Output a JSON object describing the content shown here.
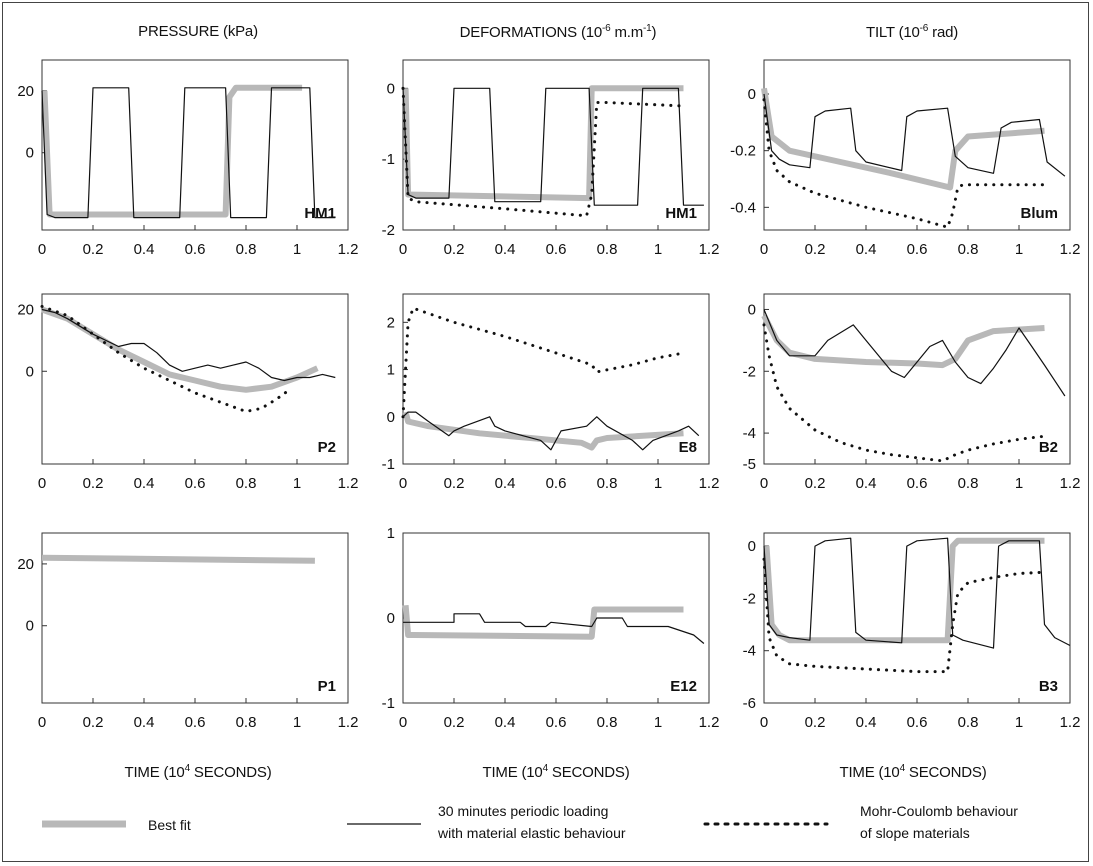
{
  "columns": [
    {
      "title": "PRESSURE (kPa)",
      "title_parts": [
        "PRESSURE (kPa)",
        "",
        ""
      ]
    },
    {
      "title": "DEFORMATIONS (10-6 m.m-1)",
      "title_parts": [
        "DEFORMATIONS (10",
        "-6",
        " m.m",
        "-1",
        ")"
      ]
    },
    {
      "title": "TILT (10-6 rad)",
      "title_parts": [
        "TILT (10",
        "-6",
        " rad)"
      ]
    }
  ],
  "xlabel": {
    "text": "TIME (104 SECONDS)",
    "pre": "TIME (10",
    "sup": "4",
    "post": " SECONDS)"
  },
  "legend": [
    {
      "label": "Best fit",
      "style": "best-fit"
    },
    {
      "label": "30 minutes periodic loading\nwith material elastic behaviour",
      "line1": "30 minutes periodic loading",
      "line2": "with material elastic behaviour",
      "style": "elastic"
    },
    {
      "label": "Mohr-Coulomb behaviour\nof slope materials",
      "line1": "Mohr-Coulomb behaviour",
      "line2": "of slope materials",
      "style": "mohr"
    }
  ],
  "colors": {
    "best_fit": "#b8b8b8",
    "elastic": "#111111",
    "mohr": "#111111",
    "frame": "#333333"
  },
  "chart_data": [
    {
      "id": "HM1-pressure",
      "type": "line",
      "label": "HM1",
      "xlim": [
        0,
        1.2
      ],
      "ylim": [
        -25,
        30
      ],
      "xticks": [
        0,
        0.2,
        0.4,
        0.6,
        0.8,
        1,
        1.2
      ],
      "xticklabels": [
        "0",
        "0.2",
        "0.4",
        "0.6",
        "0.8",
        "1",
        "1.2"
      ],
      "yticks": [
        20,
        0
      ],
      "yticklabels": [
        "20",
        "0"
      ],
      "series": [
        {
          "style": "elastic",
          "x": [
            0,
            0.02,
            0.05,
            0.18,
            0.2,
            0.34,
            0.36,
            0.54,
            0.56,
            0.72,
            0.74,
            0.88,
            0.9,
            1.05,
            1.07,
            1.15
          ],
          "y": [
            20,
            -20,
            -21,
            -21,
            21,
            21,
            -21,
            -21,
            21,
            21,
            -21,
            -21,
            21,
            21,
            -21,
            -21
          ]
        },
        {
          "style": "best-fit",
          "x": [
            0.01,
            0.03,
            0.72,
            0.735,
            0.76,
            1.02
          ],
          "y": [
            20,
            -20,
            -20,
            18,
            21,
            21
          ]
        }
      ]
    },
    {
      "id": "HM1-deformation",
      "type": "line",
      "label": "HM1",
      "xlim": [
        0,
        1.2
      ],
      "ylim": [
        -2,
        0.4
      ],
      "xticks": [
        0,
        0.2,
        0.4,
        0.6,
        0.8,
        1,
        1.2
      ],
      "xticklabels": [
        "0",
        "0.2",
        "0.4",
        "0.6",
        "0.8",
        "1",
        "1.2"
      ],
      "yticks": [
        0,
        -1,
        -2
      ],
      "yticklabels": [
        "0",
        "-1",
        "-2"
      ],
      "series": [
        {
          "style": "elastic",
          "x": [
            0,
            0.02,
            0.05,
            0.18,
            0.2,
            0.34,
            0.36,
            0.54,
            0.56,
            0.73,
            0.75,
            0.92,
            0.94,
            1.08,
            1.1,
            1.18
          ],
          "y": [
            0,
            -1.5,
            -1.55,
            -1.55,
            0,
            0,
            -1.6,
            -1.6,
            0,
            0,
            -1.65,
            -1.65,
            0,
            0,
            -1.65,
            -1.65
          ]
        },
        {
          "style": "best-fit",
          "x": [
            0.01,
            0.02,
            0.04,
            0.73,
            0.74,
            0.76,
            1.1
          ],
          "y": [
            0,
            -1.5,
            -1.5,
            -1.55,
            0,
            0,
            0
          ]
        },
        {
          "style": "mohr",
          "x": [
            0,
            0.02,
            0.05,
            0.4,
            0.72,
            0.74,
            0.76,
            0.8,
            1.1
          ],
          "y": [
            0,
            -1.55,
            -1.6,
            -1.7,
            -1.8,
            -1.5,
            -0.2,
            -0.2,
            -0.25
          ]
        }
      ]
    },
    {
      "id": "Blum-tilt",
      "type": "line",
      "label": "Blum",
      "xlim": [
        0,
        1.2
      ],
      "ylim": [
        -0.48,
        0.12
      ],
      "xticks": [
        0,
        0.2,
        0.4,
        0.6,
        0.8,
        1,
        1.2
      ],
      "xticklabels": [
        "0",
        "0.2",
        "0.4",
        "0.6",
        "0.8",
        "1",
        "1.2"
      ],
      "yticks": [
        0,
        -0.2,
        -0.4
      ],
      "yticklabels": [
        "0",
        "-0.2",
        "-0.4"
      ],
      "series": [
        {
          "style": "elastic",
          "x": [
            0,
            0.03,
            0.06,
            0.1,
            0.18,
            0.2,
            0.24,
            0.34,
            0.36,
            0.4,
            0.54,
            0.56,
            0.6,
            0.72,
            0.75,
            0.8,
            0.9,
            0.93,
            0.97,
            1.08,
            1.11,
            1.18
          ],
          "y": [
            0,
            -0.2,
            -0.23,
            -0.25,
            -0.26,
            -0.08,
            -0.06,
            -0.05,
            -0.2,
            -0.24,
            -0.27,
            -0.08,
            -0.06,
            -0.05,
            -0.22,
            -0.26,
            -0.28,
            -0.12,
            -0.1,
            -0.09,
            -0.24,
            -0.29
          ]
        },
        {
          "style": "best-fit",
          "x": [
            0,
            0.03,
            0.1,
            0.3,
            0.5,
            0.73,
            0.75,
            0.8,
            1.1
          ],
          "y": [
            0.02,
            -0.15,
            -0.2,
            -0.24,
            -0.28,
            -0.33,
            -0.2,
            -0.15,
            -0.13
          ]
        },
        {
          "style": "mohr",
          "x": [
            0,
            0.02,
            0.05,
            0.1,
            0.2,
            0.4,
            0.6,
            0.72,
            0.74,
            0.76,
            0.78,
            1.1
          ],
          "y": [
            -0.02,
            -0.2,
            -0.27,
            -0.31,
            -0.35,
            -0.4,
            -0.44,
            -0.47,
            -0.42,
            -0.33,
            -0.32,
            -0.32
          ]
        }
      ]
    },
    {
      "id": "P2-pressure",
      "type": "line",
      "label": "P2",
      "xlim": [
        0,
        1.2
      ],
      "ylim": [
        -30,
        25
      ],
      "xticks": [
        0,
        0.2,
        0.4,
        0.6,
        0.8,
        1,
        1.2
      ],
      "xticklabels": [
        "0",
        "0.2",
        "0.4",
        "0.6",
        "0.8",
        "1",
        "1.2"
      ],
      "yticks": [
        20,
        0
      ],
      "yticklabels": [
        "20",
        "0"
      ],
      "series": [
        {
          "style": "elastic",
          "x": [
            0,
            0.05,
            0.1,
            0.2,
            0.3,
            0.35,
            0.4,
            0.45,
            0.5,
            0.55,
            0.6,
            0.65,
            0.7,
            0.75,
            0.8,
            0.85,
            0.9,
            0.95,
            1.0,
            1.05,
            1.1,
            1.15
          ],
          "y": [
            20,
            19,
            17,
            12,
            8,
            9,
            9,
            6,
            2,
            0,
            1,
            2,
            1,
            2,
            3,
            1,
            -2,
            -3,
            -2,
            -2,
            -1,
            -2
          ]
        },
        {
          "style": "best-fit",
          "x": [
            0,
            0.1,
            0.2,
            0.3,
            0.4,
            0.5,
            0.6,
            0.7,
            0.8,
            0.9,
            1.0,
            1.08
          ],
          "y": [
            20,
            17,
            12,
            7,
            3,
            -1,
            -3,
            -5,
            -6,
            -5,
            -2,
            1
          ]
        },
        {
          "style": "mohr",
          "x": [
            0,
            0.1,
            0.2,
            0.3,
            0.4,
            0.5,
            0.6,
            0.7,
            0.8,
            0.86,
            0.92,
            0.97
          ],
          "y": [
            21,
            18,
            12,
            6,
            1,
            -3,
            -7,
            -10,
            -13,
            -12,
            -9,
            -6
          ]
        }
      ]
    },
    {
      "id": "E8-deformation",
      "type": "line",
      "label": "E8",
      "xlim": [
        0,
        1.2
      ],
      "ylim": [
        -1,
        2.6
      ],
      "xticks": [
        0,
        0.2,
        0.4,
        0.6,
        0.8,
        1,
        1.2
      ],
      "xticklabels": [
        "0",
        "0.2",
        "0.4",
        "0.6",
        "0.8",
        "1",
        "1.2"
      ],
      "yticks": [
        2,
        1,
        0,
        -1
      ],
      "yticklabels": [
        "2",
        "1",
        "0",
        "-1"
      ],
      "series": [
        {
          "style": "elastic",
          "x": [
            0,
            0.02,
            0.05,
            0.1,
            0.18,
            0.2,
            0.24,
            0.34,
            0.36,
            0.4,
            0.54,
            0.58,
            0.62,
            0.72,
            0.76,
            0.8,
            0.9,
            0.94,
            0.98,
            1.08,
            1.12,
            1.16
          ],
          "y": [
            0,
            0.1,
            0.1,
            -0.1,
            -0.4,
            -0.3,
            -0.2,
            0.0,
            -0.2,
            -0.3,
            -0.5,
            -0.7,
            -0.3,
            -0.2,
            0.0,
            -0.2,
            -0.5,
            -0.7,
            -0.5,
            -0.3,
            -0.2,
            -0.4
          ]
        },
        {
          "style": "best-fit",
          "x": [
            0.01,
            0.02,
            0.1,
            0.3,
            0.5,
            0.7,
            0.74,
            0.76,
            0.8,
            1.1
          ],
          "y": [
            0.1,
            -0.1,
            -0.2,
            -0.35,
            -0.45,
            -0.55,
            -0.65,
            -0.5,
            -0.45,
            -0.35
          ]
        },
        {
          "style": "mohr",
          "x": [
            0,
            0.02,
            0.04,
            0.2,
            0.4,
            0.6,
            0.74,
            0.76,
            0.9,
            1.0,
            1.1
          ],
          "y": [
            0,
            2.0,
            2.3,
            2.0,
            1.7,
            1.35,
            1.1,
            0.95,
            1.1,
            1.25,
            1.35
          ]
        }
      ]
    },
    {
      "id": "B2-tilt",
      "type": "line",
      "label": "B2",
      "xlim": [
        0,
        1.2
      ],
      "ylim": [
        -5,
        0.5
      ],
      "xticks": [
        0,
        0.2,
        0.4,
        0.6,
        0.8,
        1,
        1.2
      ],
      "xticklabels": [
        "0",
        "0.2",
        "0.4",
        "0.6",
        "0.8",
        "1",
        "1.2"
      ],
      "yticks": [
        0,
        -2,
        -4,
        -5
      ],
      "yticklabels": [
        "0",
        "-2",
        "-4",
        "-5"
      ],
      "series": [
        {
          "style": "elastic",
          "x": [
            0,
            0.05,
            0.1,
            0.2,
            0.25,
            0.35,
            0.4,
            0.5,
            0.55,
            0.65,
            0.7,
            0.75,
            0.8,
            0.85,
            0.9,
            0.95,
            1.0,
            1.05,
            1.1,
            1.18
          ],
          "y": [
            0,
            -1,
            -1.5,
            -1.5,
            -1,
            -0.5,
            -1,
            -2,
            -2.2,
            -1.2,
            -1,
            -1.7,
            -2.2,
            -2.4,
            -1.9,
            -1.3,
            -0.6,
            -1.2,
            -1.8,
            -2.8
          ]
        },
        {
          "style": "best-fit",
          "x": [
            0,
            0.05,
            0.1,
            0.2,
            0.4,
            0.6,
            0.7,
            0.75,
            0.8,
            0.9,
            1.1
          ],
          "y": [
            -0.2,
            -1,
            -1.4,
            -1.6,
            -1.7,
            -1.75,
            -1.8,
            -1.6,
            -1.0,
            -0.7,
            -0.6
          ]
        },
        {
          "style": "mohr",
          "x": [
            0,
            0.02,
            0.05,
            0.1,
            0.2,
            0.3,
            0.4,
            0.5,
            0.6,
            0.7,
            0.75,
            0.8,
            0.9,
            1.0,
            1.1
          ],
          "y": [
            -0.5,
            -1.5,
            -2.5,
            -3.2,
            -3.9,
            -4.3,
            -4.55,
            -4.7,
            -4.8,
            -4.9,
            -4.7,
            -4.55,
            -4.35,
            -4.2,
            -4.1
          ]
        }
      ]
    },
    {
      "id": "P1-pressure",
      "type": "line",
      "label": "P1",
      "xlim": [
        0,
        1.2
      ],
      "ylim": [
        -25,
        30
      ],
      "xticks": [
        0,
        0.2,
        0.4,
        0.6,
        0.8,
        1,
        1.2
      ],
      "xticklabels": [
        "0",
        "0.2",
        "0.4",
        "0.6",
        "0.8",
        "1",
        "1.2"
      ],
      "yticks": [
        20,
        0
      ],
      "yticklabels": [
        "20",
        "0"
      ],
      "series": [
        {
          "style": "best-fit",
          "x": [
            0,
            1.07
          ],
          "y": [
            22,
            21
          ]
        }
      ]
    },
    {
      "id": "E12-deformation",
      "type": "line",
      "label": "E12",
      "xlim": [
        0,
        1.2
      ],
      "ylim": [
        -1,
        1
      ],
      "xticks": [
        0,
        0.2,
        0.4,
        0.6,
        0.8,
        1,
        1.2
      ],
      "xticklabels": [
        "0",
        "0.2",
        "0.4",
        "0.6",
        "0.8",
        "1",
        "1.2"
      ],
      "yticks": [
        1,
        0,
        -1
      ],
      "yticklabels": [
        "1",
        "0",
        "-1"
      ],
      "series": [
        {
          "style": "elastic",
          "x": [
            0,
            0.02,
            0.2,
            0.2,
            0.3,
            0.32,
            0.46,
            0.48,
            0.56,
            0.58,
            0.74,
            0.76,
            0.86,
            0.88,
            1.02,
            1.04,
            1.14,
            1.18
          ],
          "y": [
            -0.05,
            -0.05,
            -0.05,
            0.05,
            0.05,
            -0.05,
            -0.05,
            -0.1,
            -0.1,
            -0.05,
            -0.1,
            0.0,
            0.0,
            -0.1,
            -0.1,
            -0.1,
            -0.2,
            -0.3
          ]
        },
        {
          "style": "best-fit",
          "x": [
            0.01,
            0.02,
            0.04,
            0.74,
            0.75,
            0.77,
            1.1
          ],
          "y": [
            0.15,
            -0.2,
            -0.2,
            -0.22,
            0.1,
            0.1,
            0.1
          ]
        }
      ]
    },
    {
      "id": "B3-tilt",
      "type": "line",
      "label": "B3",
      "xlim": [
        0,
        1.2
      ],
      "ylim": [
        -6,
        0.5
      ],
      "xticks": [
        0,
        0.2,
        0.4,
        0.6,
        0.8,
        1,
        1.2
      ],
      "xticklabels": [
        "0",
        "0.2",
        "0.4",
        "0.6",
        "0.8",
        "1",
        "1.2"
      ],
      "yticks": [
        0,
        -2,
        -4,
        -6
      ],
      "yticklabels": [
        "0",
        "-2",
        "-4",
        "-6"
      ],
      "series": [
        {
          "style": "elastic",
          "x": [
            0,
            0.02,
            0.05,
            0.1,
            0.18,
            0.2,
            0.24,
            0.34,
            0.36,
            0.4,
            0.54,
            0.56,
            0.6,
            0.72,
            0.74,
            0.78,
            0.9,
            0.92,
            0.96,
            1.08,
            1.1,
            1.14,
            1.2
          ],
          "y": [
            0,
            -3,
            -3.4,
            -3.5,
            -3.6,
            0,
            0.2,
            0.3,
            -3.3,
            -3.6,
            -3.7,
            0,
            0.2,
            0.3,
            -3.4,
            -3.6,
            -3.9,
            0,
            0.2,
            0.2,
            -3.0,
            -3.5,
            -3.8
          ]
        },
        {
          "style": "best-fit",
          "x": [
            0.01,
            0.03,
            0.06,
            0.1,
            0.72,
            0.74,
            0.76,
            0.8,
            1.1
          ],
          "y": [
            0,
            -3,
            -3.4,
            -3.6,
            -3.6,
            0,
            0.2,
            0.2,
            0.2
          ]
        },
        {
          "style": "mohr",
          "x": [
            0,
            0.02,
            0.05,
            0.1,
            0.2,
            0.4,
            0.6,
            0.72,
            0.74,
            0.76,
            0.8,
            0.9,
            1.0,
            1.1
          ],
          "y": [
            -0.5,
            -3.5,
            -4.2,
            -4.5,
            -4.6,
            -4.7,
            -4.8,
            -4.8,
            -3.0,
            -1.8,
            -1.4,
            -1.2,
            -1.05,
            -1.0
          ]
        }
      ]
    }
  ]
}
